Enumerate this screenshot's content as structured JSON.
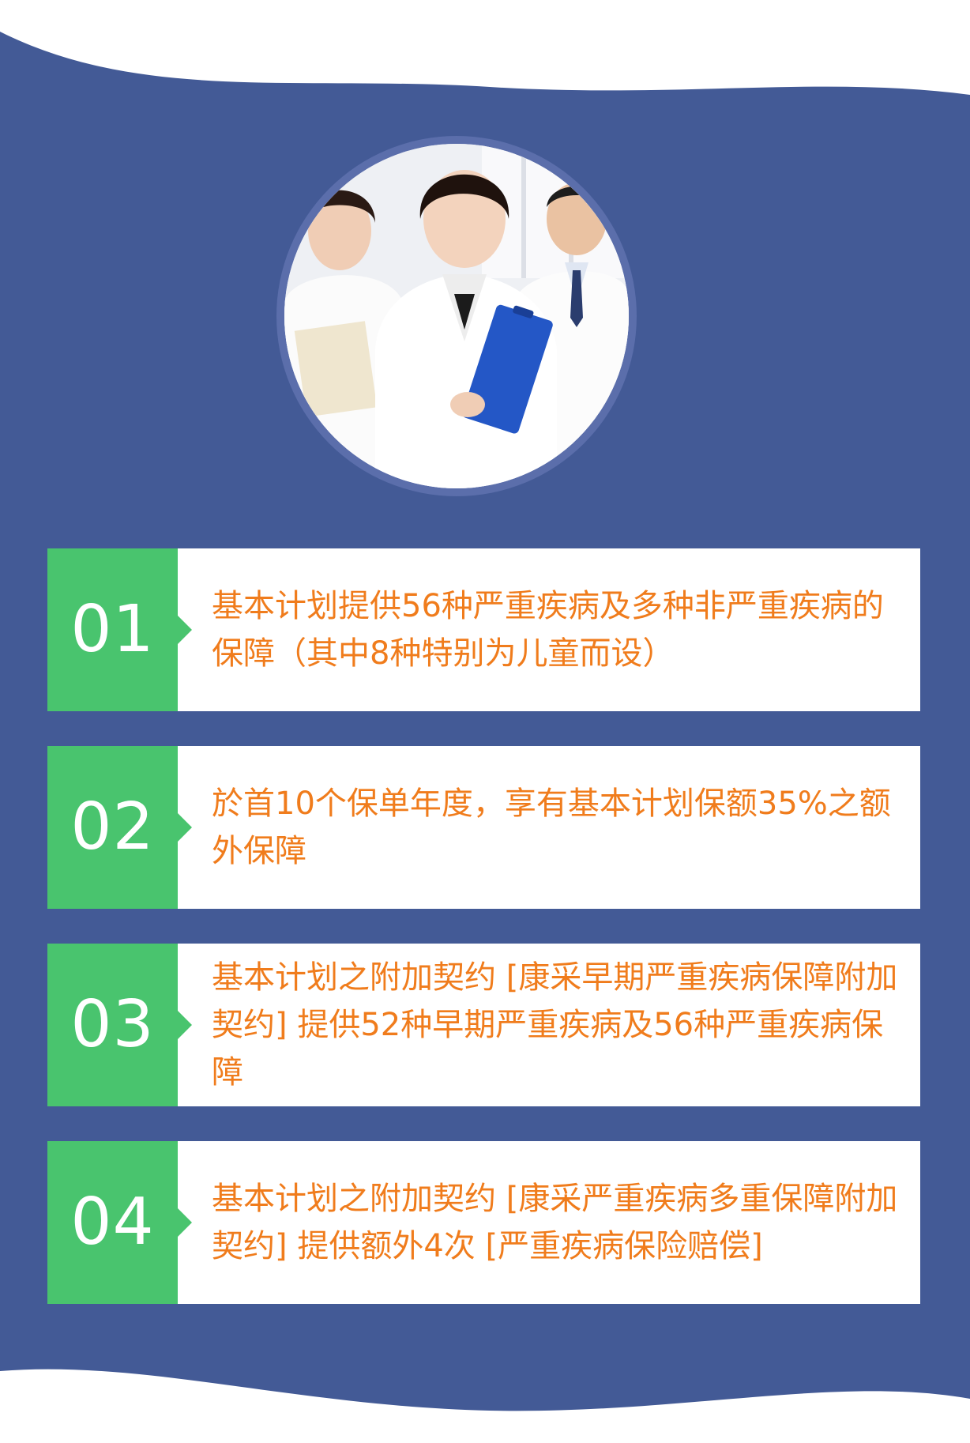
{
  "colors": {
    "background_blue": "#435a96",
    "card_white": "#ffffff",
    "number_green": "#49c46e",
    "text_orange": "#f07c1c"
  },
  "features": [
    {
      "number": "01",
      "text": "基本计划提供56种严重疾病及多种非严重疾病的保障（其中8种特别为儿童而设）"
    },
    {
      "number": "02",
      "text": "於首10个保单年度，享有基本计划保额35%之额外保障"
    },
    {
      "number": "03",
      "text": "基本计划之附加契约 [康采早期严重疾病保障附加契约] 提供52种早期严重疾病及56种严重疾病保障"
    },
    {
      "number": "04",
      "text": "基本计划之附加契约 [康采严重疾病多重保障附加契约] 提供额外4次 [严重疾病保险赔偿]"
    }
  ]
}
